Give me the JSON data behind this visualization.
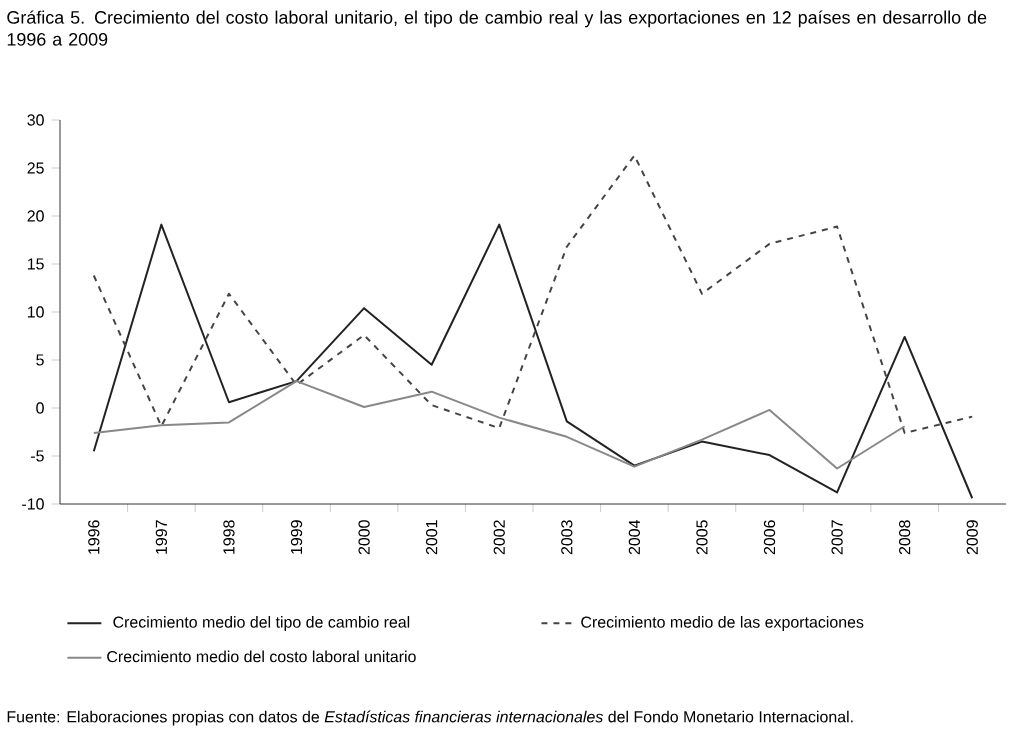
{
  "chart_data": {
    "type": "line",
    "title": "Gráfica 5. Crecimiento del costo laboral unitario, el tipo de cambio real y las exportaciones en 12 países en desarrollo de 1996 a 2009",
    "categories": [
      "1996",
      "1997",
      "1998",
      "1999",
      "2000",
      "2001",
      "2002",
      "2003",
      "2004",
      "2005",
      "2006",
      "2007",
      "2008",
      "2009"
    ],
    "series": [
      {
        "name": "Crecimiento medio del tipo de cambio real",
        "color": "#222222",
        "line_style": "solid",
        "values": [
          -4.5,
          19.1,
          0.6,
          2.8,
          10.4,
          4.5,
          19.1,
          -1.4,
          -6.0,
          -3.5,
          -4.9,
          -8.8,
          7.4,
          -9.4
        ]
      },
      {
        "name": "Crecimiento medio de las exportaciones",
        "color": "#444444",
        "line_style": "dashed",
        "values": [
          13.8,
          -1.9,
          11.9,
          2.4,
          7.6,
          0.3,
          -2.1,
          16.8,
          26.3,
          11.9,
          17.1,
          18.9,
          -2.6,
          -0.9
        ]
      },
      {
        "name": "Crecimiento medio del costo laboral unitario",
        "color": "#888888",
        "line_style": "solid",
        "values": [
          -2.6,
          -1.8,
          -1.5,
          2.8,
          0.1,
          1.7,
          -1.0,
          -3.0,
          -6.1,
          -3.3,
          -0.2,
          -6.3,
          -1.9,
          null
        ]
      }
    ],
    "ylim": [
      -10,
      30
    ],
    "yticks": [
      -10,
      -5,
      0,
      5,
      10,
      15,
      20,
      25,
      30
    ],
    "grid": false,
    "legend": "bottom",
    "marker": "none",
    "annotations": [
      "Fuente: Elaboraciones propias con datos de *Estadísticas financieras internacionales* del Fondo Monetario Internacional."
    ]
  }
}
